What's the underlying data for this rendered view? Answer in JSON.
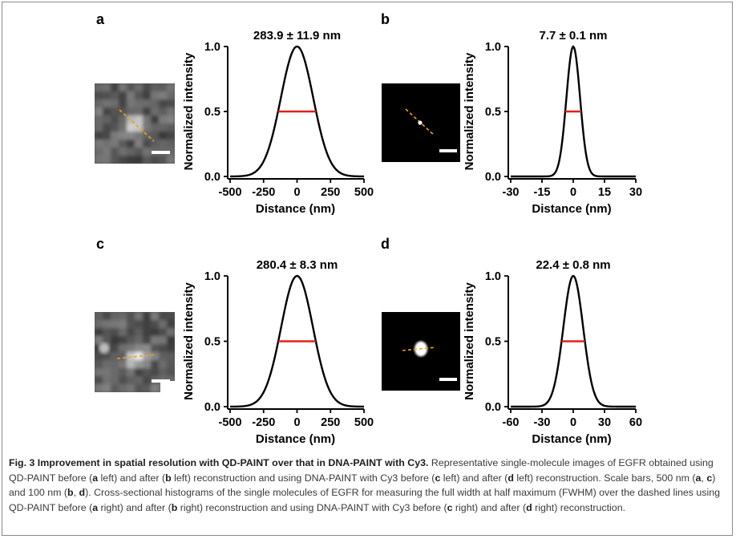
{
  "panels": [
    {
      "letter": "a",
      "title": "283.9 ± 11.9 nm",
      "ylabel": "Normalized intensity",
      "xlabel": "Distance (nm)",
      "xticks": [
        "-500",
        "-250",
        "0",
        "250",
        "500"
      ],
      "yticks": [
        "0.0",
        "0.5",
        "1.0"
      ],
      "image_type": "noisy-grayscale",
      "scale_bar": "500 nm"
    },
    {
      "letter": "b",
      "title": "7.7 ± 0.1 nm",
      "ylabel": "Normalized intensity",
      "xlabel": "Distance (nm)",
      "xticks": [
        "-30",
        "-15",
        "0",
        "15",
        "30"
      ],
      "yticks": [
        "0.0",
        "0.5",
        "1.0"
      ],
      "image_type": "dark-point",
      "scale_bar": "100 nm"
    },
    {
      "letter": "c",
      "title": "280.4 ± 8.3 nm",
      "ylabel": "Normalized intensity",
      "xlabel": "Distance (nm)",
      "xticks": [
        "-500",
        "-250",
        "0",
        "250",
        "500"
      ],
      "yticks": [
        "0.0",
        "0.5",
        "1.0"
      ],
      "image_type": "noisy-grayscale",
      "scale_bar": "500 nm"
    },
    {
      "letter": "d",
      "title": "22.4 ± 0.8 nm",
      "ylabel": "Normalized intensity",
      "xlabel": "Distance (nm)",
      "xticks": [
        "-60",
        "-30",
        "0",
        "30",
        "60"
      ],
      "yticks": [
        "0.0",
        "0.5",
        "1.0"
      ],
      "image_type": "dark-blob",
      "scale_bar": "100 nm"
    }
  ],
  "chart_data": [
    {
      "type": "line",
      "panel": "a",
      "xlabel": "Distance (nm)",
      "ylabel": "Normalized intensity",
      "xlim": [
        -500,
        500
      ],
      "ylim": [
        0,
        1
      ],
      "fwhm": 283.9,
      "fwhm_err": 11.9,
      "series": [
        {
          "peak_x": 0,
          "peak_y": 1.0
        }
      ],
      "fwhm_line": {
        "y": 0.5,
        "x": [
          -141.95,
          141.95
        ],
        "color": "#e0201c"
      }
    },
    {
      "type": "line",
      "panel": "b",
      "xlabel": "Distance (nm)",
      "ylabel": "Normalized intensity",
      "xlim": [
        -30,
        30
      ],
      "ylim": [
        0,
        1
      ],
      "fwhm": 7.7,
      "fwhm_err": 0.1,
      "series": [
        {
          "peak_x": 0,
          "peak_y": 1.0
        }
      ],
      "fwhm_line": {
        "y": 0.5,
        "x": [
          -3.85,
          3.85
        ],
        "color": "#e0201c"
      }
    },
    {
      "type": "line",
      "panel": "c",
      "xlabel": "Distance (nm)",
      "ylabel": "Normalized intensity",
      "xlim": [
        -500,
        500
      ],
      "ylim": [
        0,
        1
      ],
      "fwhm": 280.4,
      "fwhm_err": 8.3,
      "series": [
        {
          "peak_x": 0,
          "peak_y": 1.0
        }
      ],
      "fwhm_line": {
        "y": 0.5,
        "x": [
          -140.2,
          140.2
        ],
        "color": "#e0201c"
      }
    },
    {
      "type": "line",
      "panel": "d",
      "xlabel": "Distance (nm)",
      "ylabel": "Normalized intensity",
      "xlim": [
        -60,
        60
      ],
      "ylim": [
        0,
        1
      ],
      "fwhm": 22.4,
      "fwhm_err": 0.8,
      "series": [
        {
          "peak_x": 0,
          "peak_y": 1.0
        }
      ],
      "fwhm_line": {
        "y": 0.5,
        "x": [
          -11.2,
          11.2
        ],
        "color": "#e0201c"
      }
    }
  ],
  "colors": {
    "curve": "#000000",
    "fwhm": "#e0201c",
    "dashed": "#f0a020"
  },
  "caption": {
    "label": "Fig. 3 Improvement in spatial resolution with QD-PAINT over that in DNA-PAINT with Cy3.",
    "s1": " Representative single-molecule images of EGFR obtained using QD-PAINT before (",
    "a1": "a",
    "s2": " left) and after (",
    "b1": "b",
    "s3": " left) reconstruction and using DNA-PAINT with Cy3 before (",
    "c1": "c",
    "s4": " left) and after (",
    "d1": "d",
    "s5": " left) reconstruction. Scale bars, 500 nm (",
    "a2": "a",
    "s6": ", ",
    "c2": "c",
    "s7": ") and 100 nm (",
    "b2": "b",
    "s8": ", ",
    "d2": "d",
    "s9": "). Cross-sectional histograms of the single molecules of EGFR for measuring the full width at half maximum (FWHM) over the dashed lines using QD-PAINT before (",
    "a3": "a",
    "s10": " right) and after (",
    "b3": "b",
    "s11": " right) reconstruction and using DNA-PAINT with Cy3 before (",
    "c3": "c",
    "s12": " right) and after (",
    "d3": "d",
    "s13": " right) reconstruction."
  }
}
